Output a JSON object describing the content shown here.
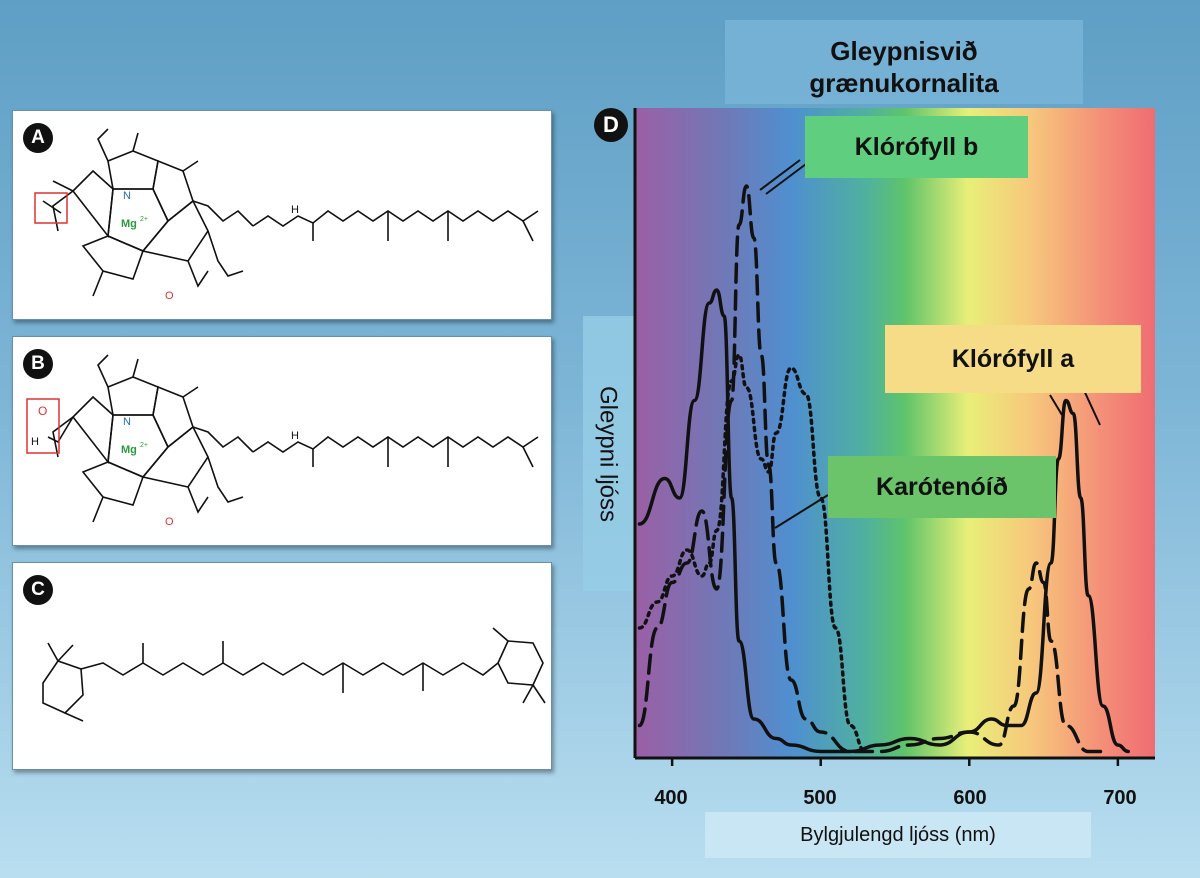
{
  "panels": [
    {
      "letter": "A"
    },
    {
      "letter": "B"
    },
    {
      "letter": "C"
    }
  ],
  "molecule_labels": {
    "nitrogen": "N",
    "nitrogen_minus": "N",
    "magnesium": "Mg",
    "mg_charge": "2+",
    "oxygen": "O",
    "hydrogen": "H"
  },
  "spectrum": {
    "panel_letter": "D",
    "title_line1": "Gleypnisvið",
    "title_line2": "grænukornalita",
    "ylabel": "Gleypni ljóss",
    "xlabel": "Bylgjulengd ljóss (nm)",
    "x_ticks": [
      "400",
      "500",
      "600",
      "700"
    ],
    "labels": {
      "chl_b": "Klórófyll b",
      "chl_a": "Klórófyll a",
      "carotenoid": "Karótenóíð"
    },
    "colors": {
      "chl_b_box": "#5fcf7f",
      "chl_a_box": "#f6dc86",
      "carotenoid_box": "#6cc46a"
    }
  },
  "chart_data": {
    "type": "line",
    "x_range": [
      375,
      725
    ],
    "series": [
      {
        "name": "Klórófyll a",
        "line": "solid",
        "x": [
          378,
          395,
          405,
          415,
          425,
          430,
          435,
          440,
          445,
          455,
          470,
          480,
          500,
          520,
          540,
          560,
          580,
          600,
          615,
          625,
          635,
          645,
          655,
          660,
          665,
          670,
          675,
          680,
          690,
          700,
          707
        ],
        "y": [
          0.36,
          0.43,
          0.4,
          0.55,
          0.7,
          0.72,
          0.68,
          0.4,
          0.18,
          0.06,
          0.03,
          0.02,
          0.01,
          0.01,
          0.02,
          0.03,
          0.02,
          0.04,
          0.06,
          0.05,
          0.05,
          0.1,
          0.3,
          0.46,
          0.55,
          0.53,
          0.4,
          0.25,
          0.08,
          0.02,
          0.01
        ]
      },
      {
        "name": "Klórófyll b",
        "line": "dashed",
        "x": [
          378,
          390,
          400,
          410,
          420,
          430,
          440,
          445,
          450,
          455,
          460,
          465,
          470,
          480,
          490,
          500,
          520,
          540,
          560,
          580,
          600,
          620,
          630,
          640,
          645,
          650,
          655,
          665,
          680,
          690
        ],
        "y": [
          0.05,
          0.2,
          0.27,
          0.3,
          0.38,
          0.26,
          0.55,
          0.82,
          0.88,
          0.8,
          0.62,
          0.45,
          0.3,
          0.12,
          0.06,
          0.04,
          0.01,
          0.01,
          0.02,
          0.03,
          0.04,
          0.02,
          0.08,
          0.26,
          0.3,
          0.27,
          0.18,
          0.05,
          0.01,
          0.01
        ]
      },
      {
        "name": "Karótenóíð",
        "line": "dotted",
        "x": [
          378,
          390,
          400,
          410,
          420,
          425,
          430,
          440,
          445,
          450,
          460,
          465,
          470,
          480,
          490,
          500,
          510,
          520,
          530
        ],
        "y": [
          0.2,
          0.24,
          0.28,
          0.32,
          0.28,
          0.3,
          0.35,
          0.58,
          0.62,
          0.57,
          0.46,
          0.44,
          0.5,
          0.6,
          0.56,
          0.4,
          0.2,
          0.05,
          0.01
        ]
      }
    ]
  }
}
